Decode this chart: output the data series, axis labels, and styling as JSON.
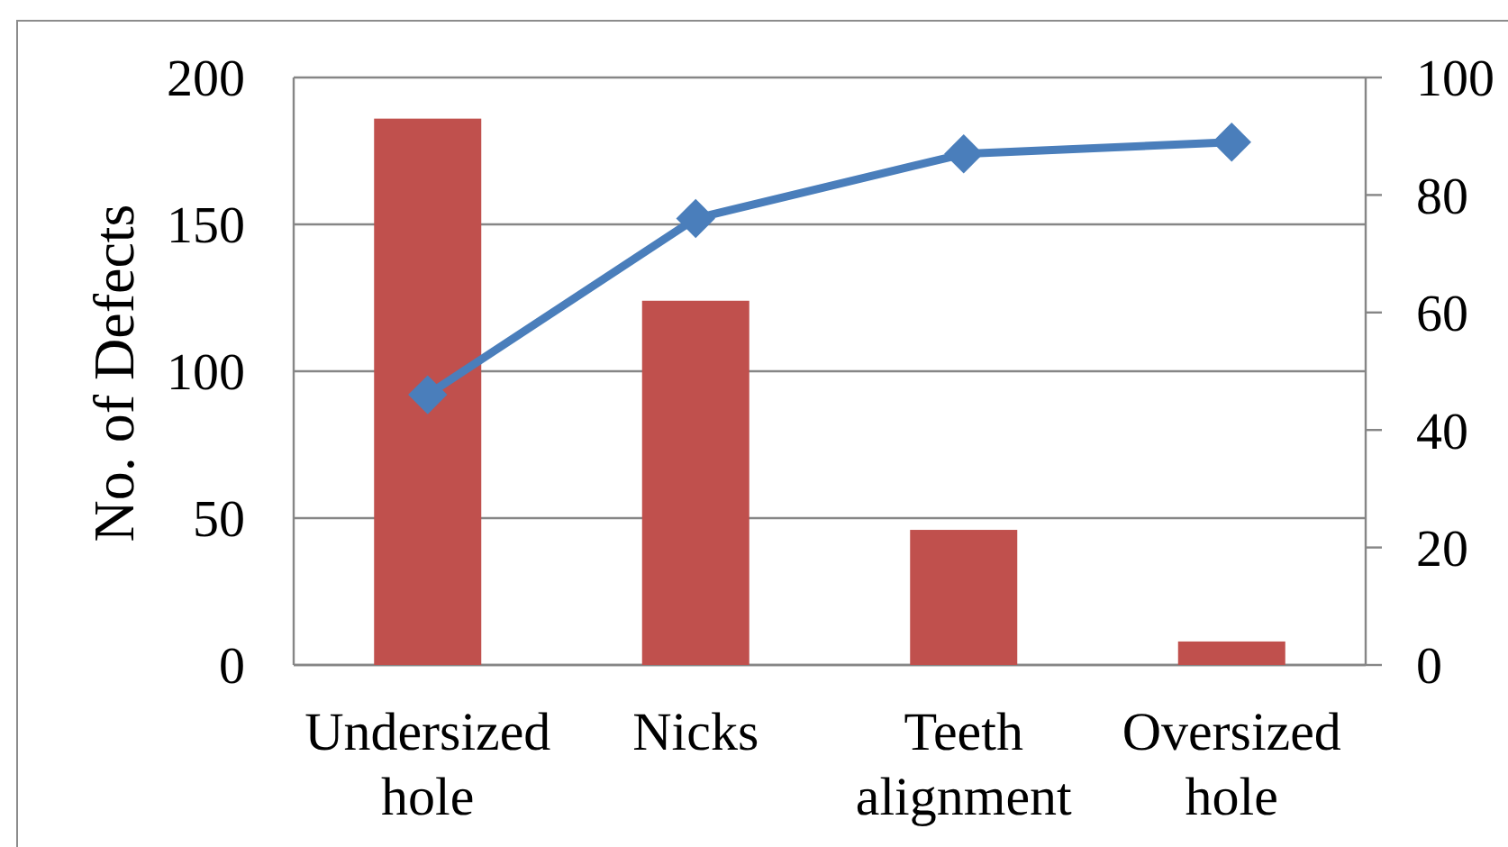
{
  "chart_data": {
    "type": "bar",
    "ylabel": "No. of Defects",
    "categories": [
      "Undersized hole",
      "Nicks",
      "Teeth alignment",
      "Oversized hole"
    ],
    "series": [
      {
        "color": "#c0504d",
        "values": [
          186,
          124,
          46,
          8
        ]
      },
      {
        "type": "line",
        "axis": "y2",
        "color": "#4a7ebb",
        "values": [
          46,
          76,
          87,
          89
        ]
      }
    ],
    "ylim": [
      0,
      200
    ],
    "yticks": [
      0,
      50,
      100,
      150,
      200
    ],
    "y2lim": [
      0,
      100
    ],
    "y2ticks": [
      0,
      20,
      40,
      60,
      80,
      100
    ],
    "grid": "y",
    "marker": "diamond",
    "line_style": "solid"
  }
}
